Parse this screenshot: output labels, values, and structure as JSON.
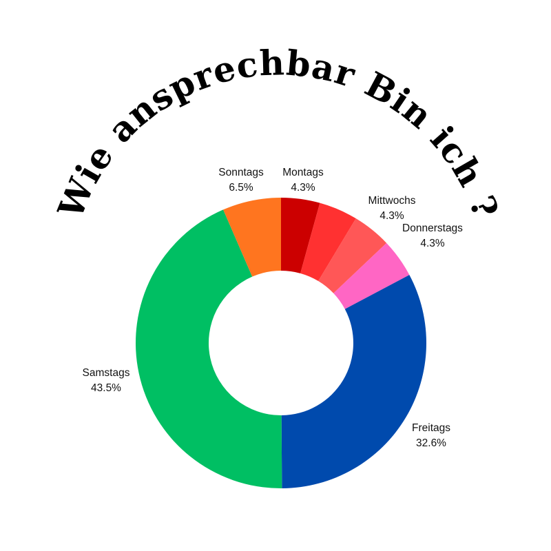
{
  "chart_data": {
    "type": "pie",
    "variant": "donut",
    "title": "Wie ansprechbar Bin ich ?",
    "start": "top",
    "direction": "clockwise",
    "slices": [
      {
        "name": "Montags",
        "value": 4.3,
        "label": "4.3%",
        "color": "#cc0000"
      },
      {
        "name": "",
        "value": 4.3,
        "label": "",
        "color": "#ff3131"
      },
      {
        "name": "Mittwochs",
        "value": 4.3,
        "label": "4.3%",
        "color": "#ff5757"
      },
      {
        "name": "Donnerstags",
        "value": 4.3,
        "label": "4.3%",
        "color": "#ff66c4"
      },
      {
        "name": "Freitags",
        "value": 32.6,
        "label": "32.6%",
        "color": "#004aad"
      },
      {
        "name": "Samstags",
        "value": 43.5,
        "label": "43.5%",
        "color": "#00bf63"
      },
      {
        "name": "Sonntags",
        "value": 6.5,
        "label": "6.5%",
        "color": "#ff751f"
      }
    ]
  }
}
